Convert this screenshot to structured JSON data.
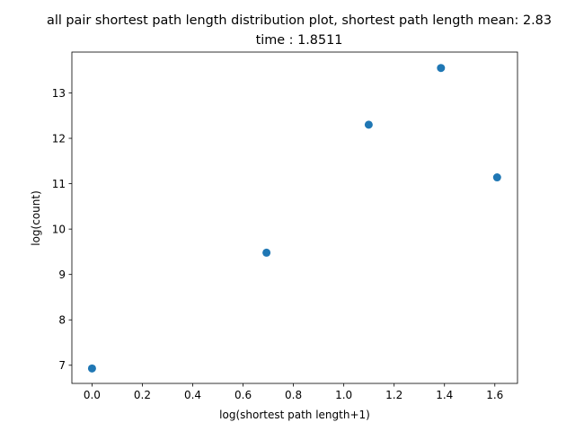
{
  "chart_data": {
    "type": "scatter",
    "title_line1": "all pair shortest path length distribution plot, shortest path length mean: 2.83",
    "title_line2": "time : 1.8511",
    "xlabel": "log(shortest path length+1)",
    "ylabel": "log(count)",
    "xlim": [
      -0.08,
      1.69
    ],
    "ylim": [
      6.6,
      13.9
    ],
    "xticks": [
      0.0,
      0.2,
      0.4,
      0.6,
      0.8,
      1.0,
      1.2,
      1.4,
      1.6
    ],
    "xtick_labels": [
      "0.0",
      "0.2",
      "0.4",
      "0.6",
      "0.8",
      "1.0",
      "1.2",
      "1.4",
      "1.6"
    ],
    "yticks": [
      7,
      8,
      9,
      10,
      11,
      12,
      13
    ],
    "ytick_labels": [
      "7",
      "8",
      "9",
      "10",
      "11",
      "12",
      "13"
    ],
    "grid": false,
    "point_color": "#1f77b4",
    "points": [
      {
        "x": 0.0,
        "y": 6.93
      },
      {
        "x": 0.693,
        "y": 9.48
      },
      {
        "x": 1.099,
        "y": 12.3
      },
      {
        "x": 1.386,
        "y": 13.55
      },
      {
        "x": 1.609,
        "y": 11.14
      }
    ]
  }
}
